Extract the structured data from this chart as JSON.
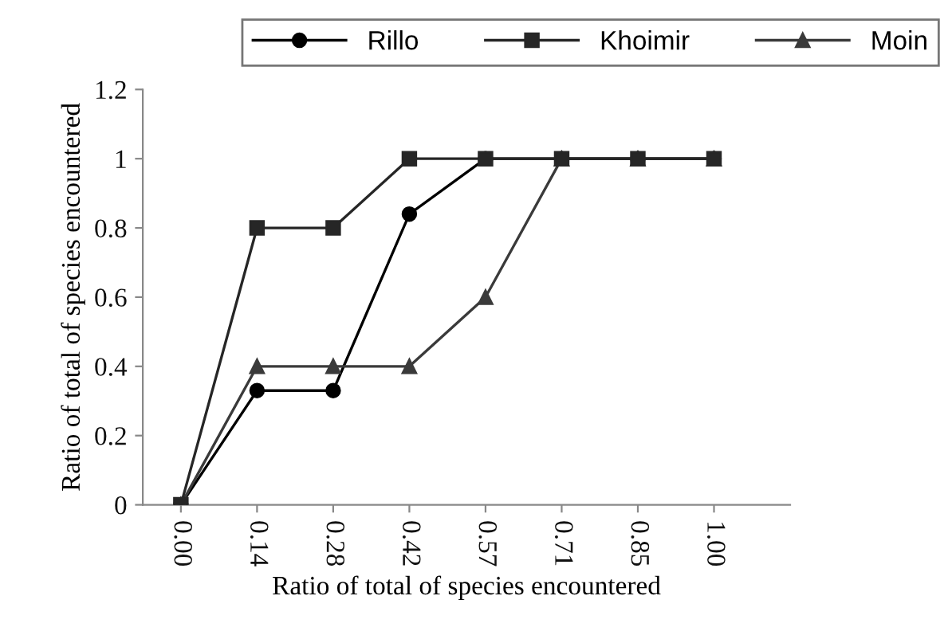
{
  "chart_data": {
    "type": "line",
    "xlabel": "Ratio of total of species encountered",
    "ylabel": "Ratio of total of species encountered",
    "categories": [
      "0.00",
      "0.14",
      "0.28",
      "0.42",
      "0.57",
      "0.71",
      "0.85",
      "1.00"
    ],
    "series": [
      {
        "name": "Rillo",
        "color": "#000000",
        "marker": "circle",
        "values": [
          0,
          0.33,
          0.33,
          0.84,
          1,
          1,
          1,
          1
        ]
      },
      {
        "name": "Khoimir",
        "color": "#262626",
        "marker": "square",
        "values": [
          0,
          0.8,
          0.8,
          1,
          1,
          1,
          1,
          1
        ]
      },
      {
        "name": "Moin",
        "color": "#3a3a3a",
        "marker": "triangle",
        "values": [
          0,
          0.4,
          0.4,
          0.4,
          0.6,
          1,
          1,
          1
        ]
      }
    ],
    "ylim": [
      0,
      1.2
    ],
    "yticks": [
      0,
      0.2,
      0.4,
      0.6,
      0.8,
      1,
      1.2
    ],
    "grid": false,
    "legend": "top right",
    "line_style": "solid"
  }
}
